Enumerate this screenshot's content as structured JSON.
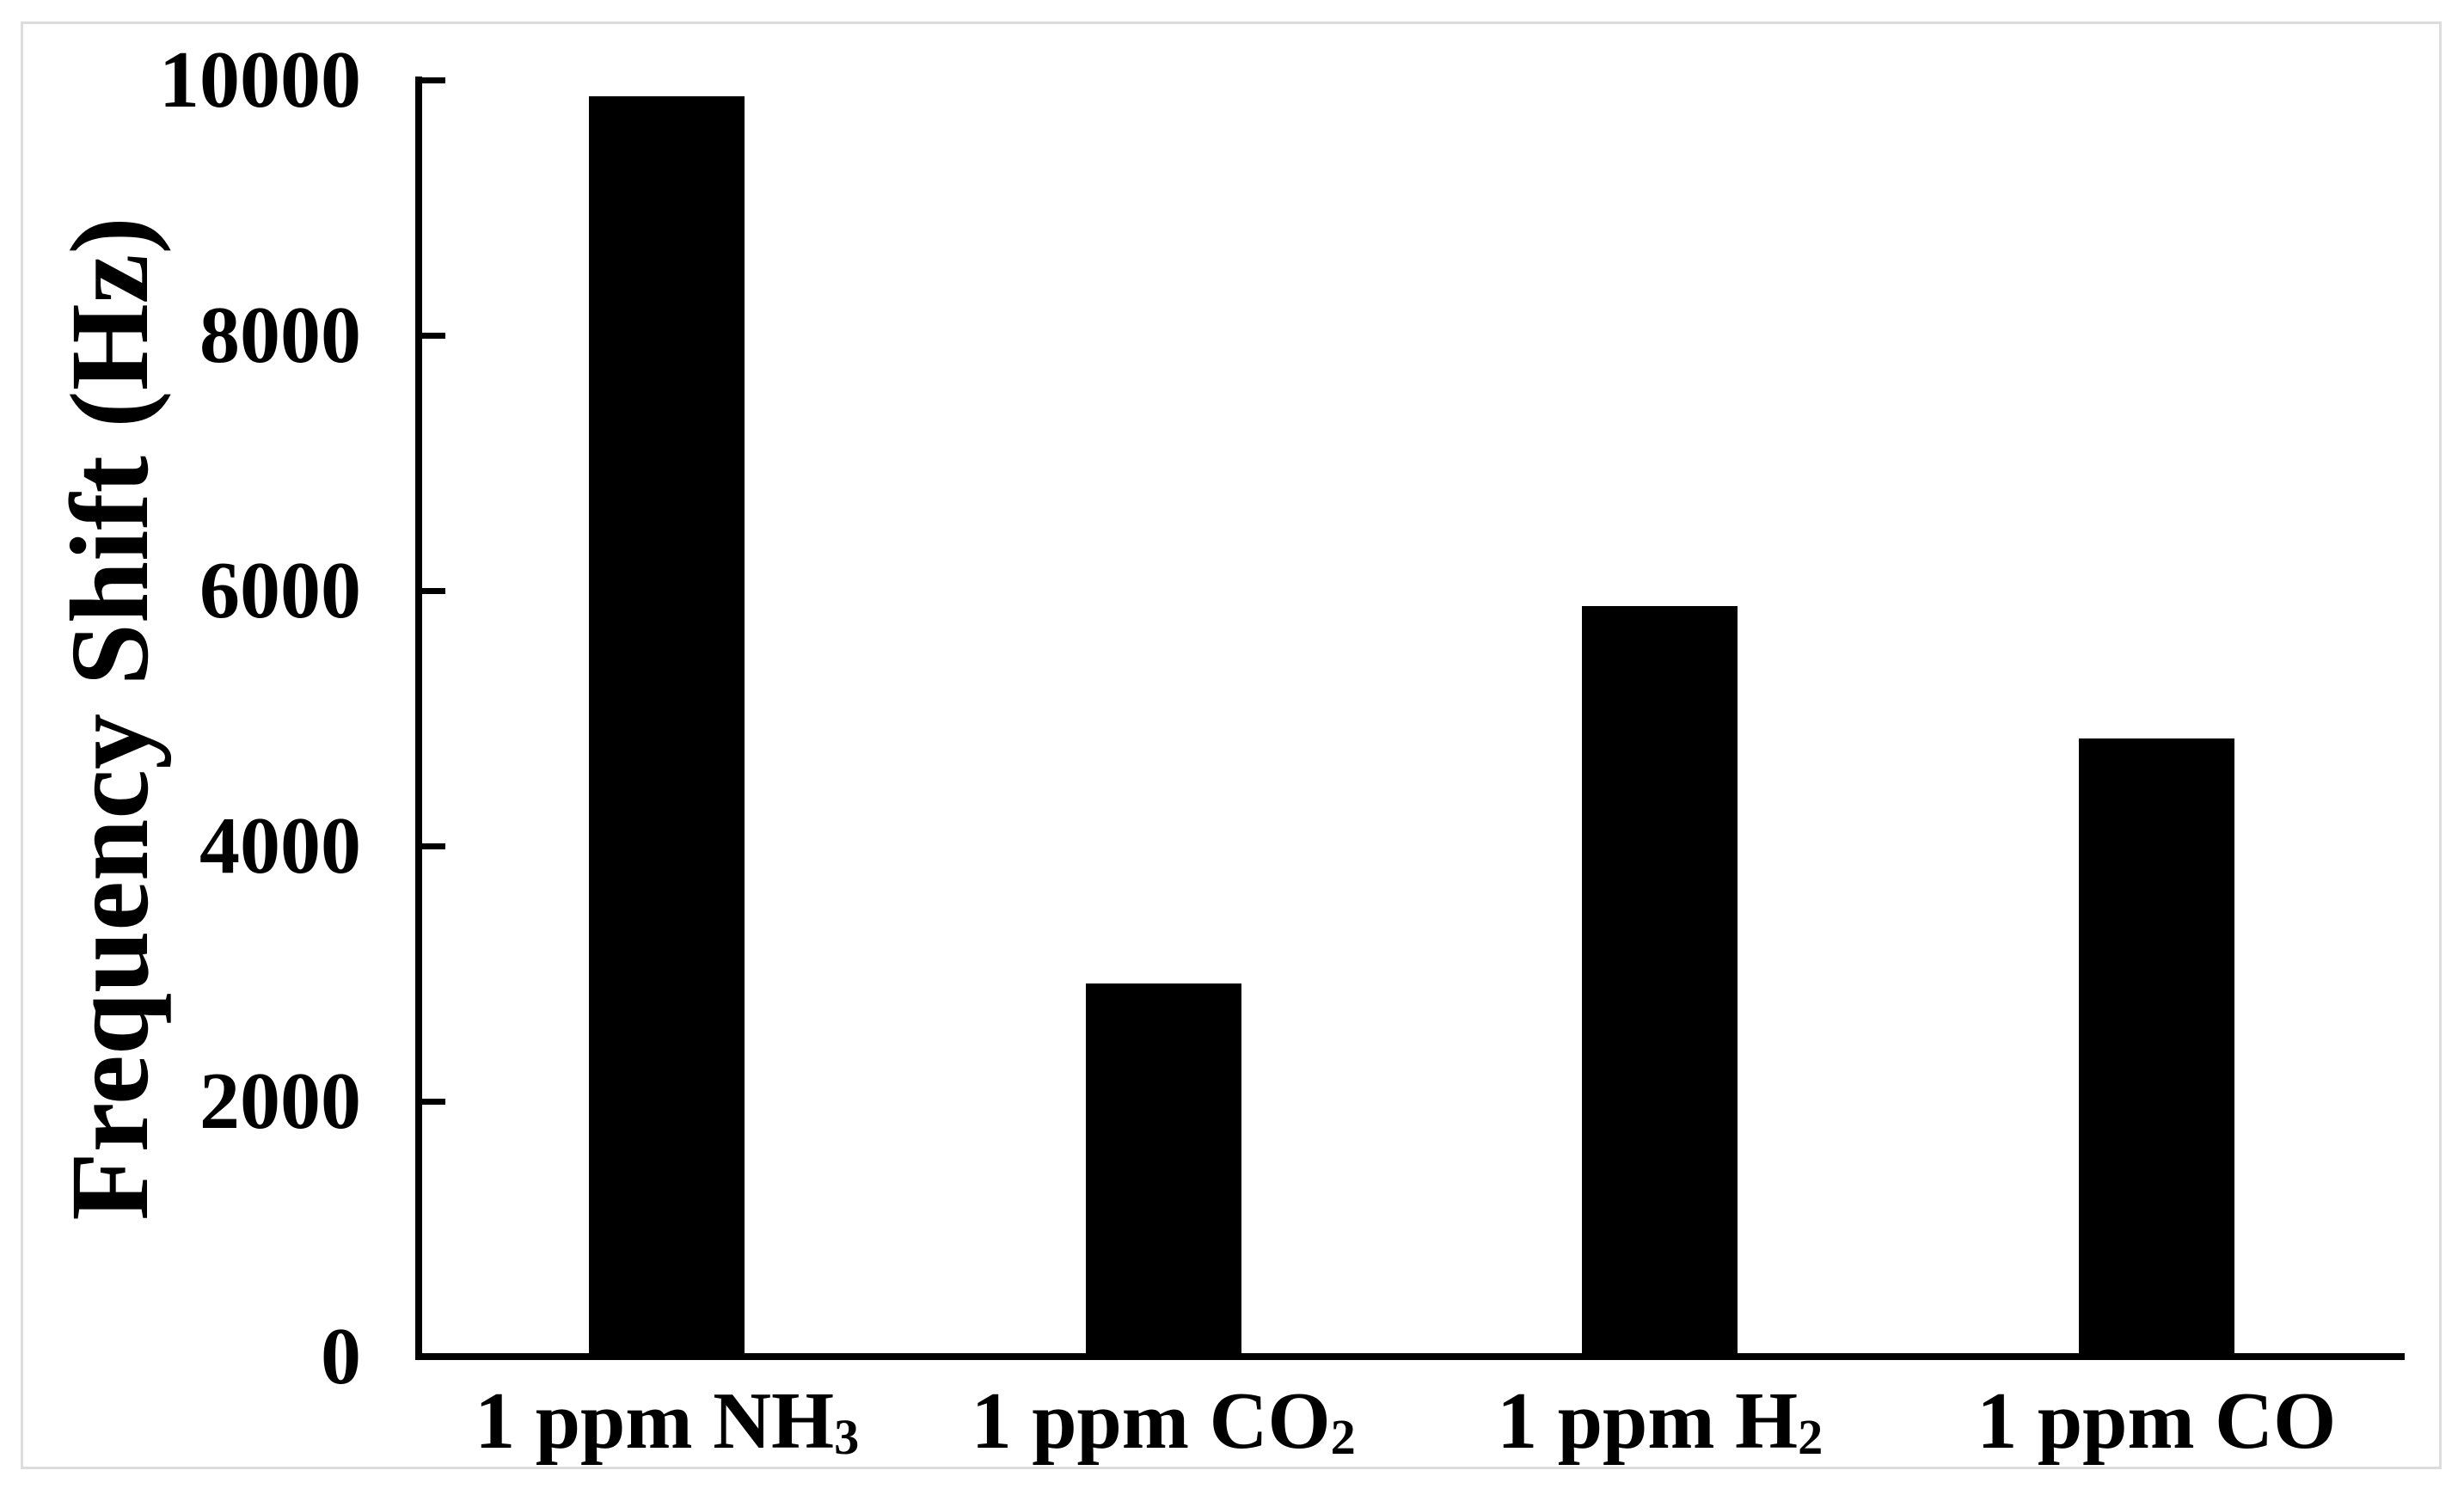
{
  "figure": {
    "background_color": "#ffffff",
    "frame_border_color": "#dcdcdc"
  },
  "chart_data": {
    "type": "bar",
    "title": "",
    "xlabel": "",
    "ylabel": "Frequency Shift (Hz)",
    "ylim": [
      0,
      10000
    ],
    "ytick_step": 2000,
    "yticks": [
      0,
      2000,
      4000,
      6000,
      8000,
      10000
    ],
    "grid": false,
    "legend": false,
    "bar_color": "#000000",
    "axis_color": "#000000",
    "categories_text": [
      "1 ppm NH3",
      "1 ppm CO2",
      "1 ppm H2",
      "1 ppm CO"
    ],
    "categories": [
      {
        "base": "1 ppm NH",
        "sub": "3"
      },
      {
        "base": "1 ppm CO",
        "sub": "2"
      },
      {
        "base": "1 ppm H",
        "sub": "2"
      },
      {
        "base": "1 ppm CO",
        "sub": ""
      }
    ],
    "series": [
      {
        "name": "Frequency Shift",
        "values": [
          9870,
          2920,
          5880,
          4840
        ]
      }
    ]
  }
}
